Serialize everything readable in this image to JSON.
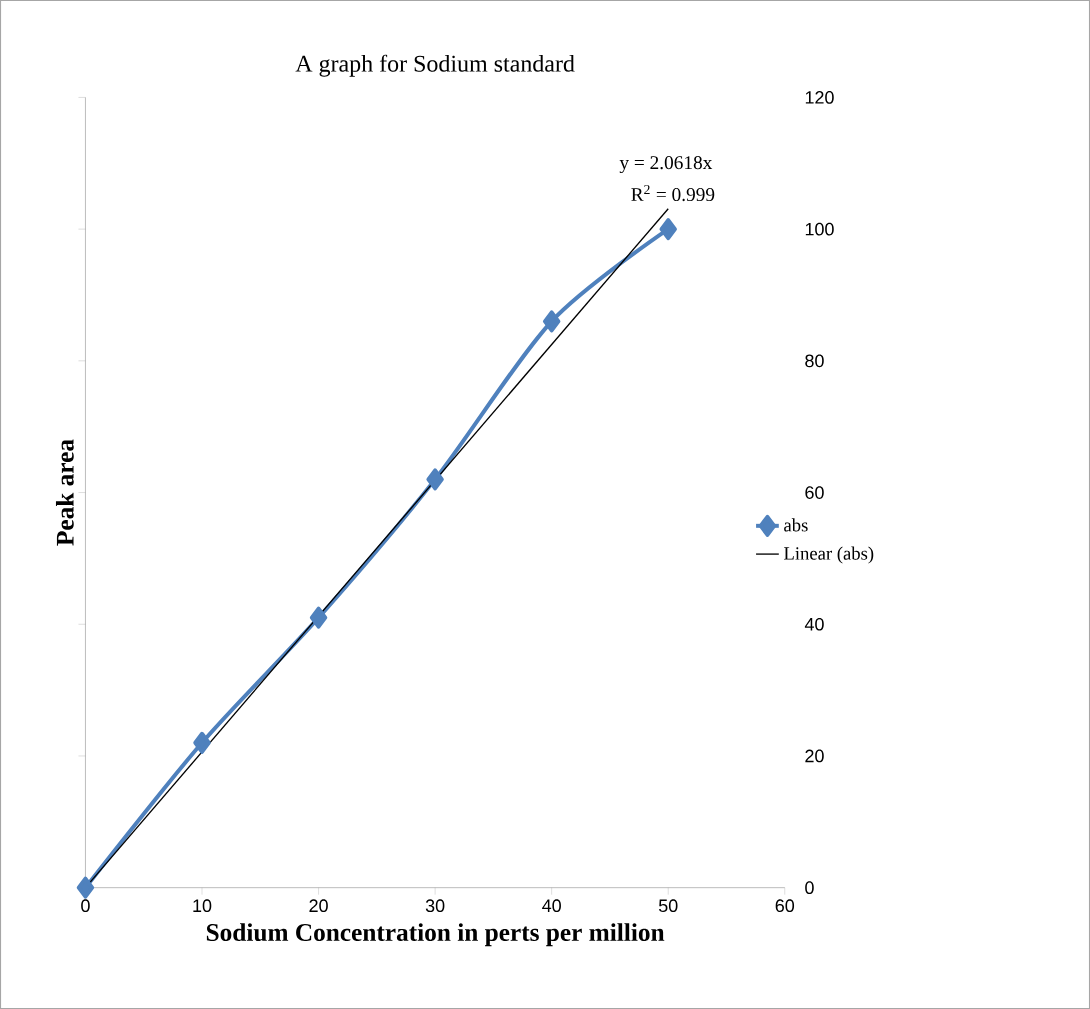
{
  "chart_data": {
    "type": "line",
    "title": "A graph for Sodium standard",
    "xlabel": "Sodium Concentration in perts per million",
    "ylabel": "Peak  area",
    "x": [
      0,
      10,
      20,
      30,
      40,
      50
    ],
    "series": [
      {
        "name": "abs",
        "color": "#4f81bd",
        "values": [
          0,
          22,
          41,
          62,
          86,
          100
        ],
        "marker": "diamond"
      },
      {
        "name": "Linear (abs)",
        "color": "#000000",
        "x": [
          0,
          50
        ],
        "values": [
          0,
          103.1
        ],
        "marker": "none"
      }
    ],
    "annotations": [
      "y = 2.0618x",
      "R$^{2}$ = 0.999"
    ],
    "xlim": [
      0,
      60
    ],
    "xticks": [
      0,
      10,
      20,
      30,
      40,
      50,
      60
    ],
    "ylim": [
      0,
      120
    ],
    "yticks": [
      0,
      20,
      40,
      60,
      80,
      100,
      120
    ],
    "grid": false,
    "legend": "right",
    "line_style": "solid"
  }
}
